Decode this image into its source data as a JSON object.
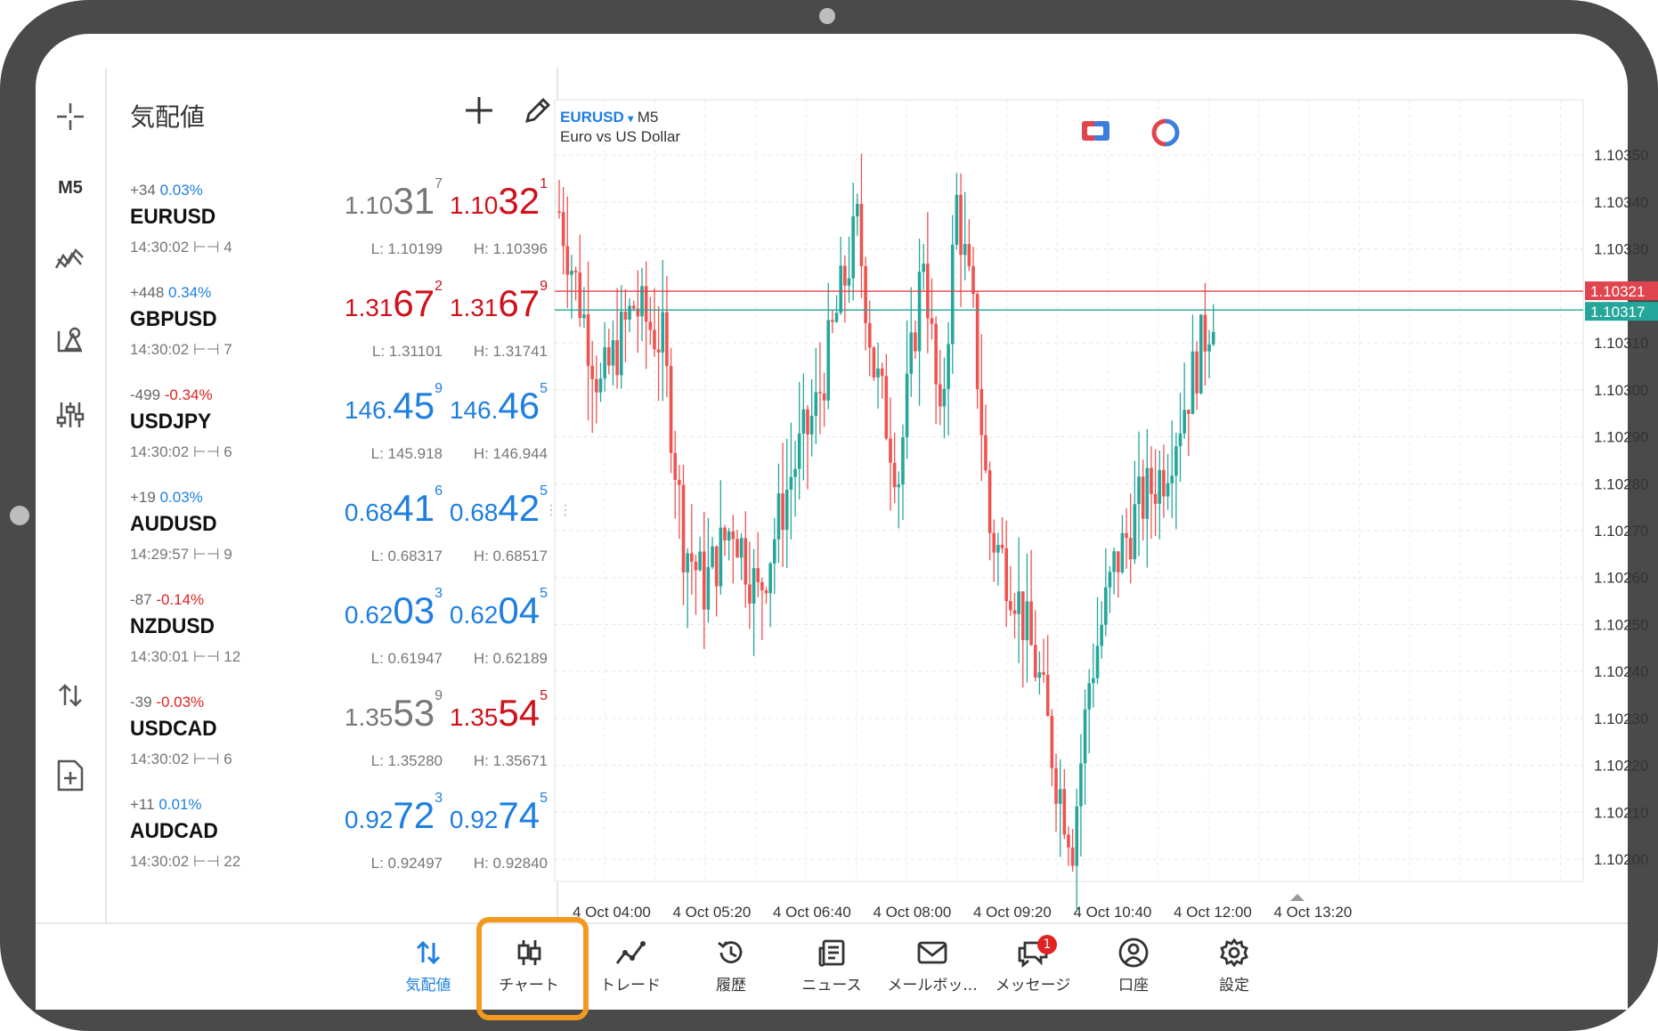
{
  "toolbar": {
    "timeframe": "M5"
  },
  "watchlist": {
    "title": "気配値",
    "symbols": [
      {
        "points": "+34",
        "pct": "0.03%",
        "dir": "up",
        "name": "EURUSD",
        "time": "14:30:02",
        "spread": "4",
        "bid": {
          "small": "1.10",
          "big": "31",
          "sup": "7",
          "color": "grey"
        },
        "ask": {
          "small": "1.10",
          "big": "32",
          "sup": "1",
          "color": "red"
        },
        "low": "L: 1.10199",
        "high": "H: 1.10396"
      },
      {
        "points": "+448",
        "pct": "0.34%",
        "dir": "up",
        "name": "GBPUSD",
        "time": "14:30:02",
        "spread": "7",
        "bid": {
          "small": "1.31",
          "big": "67",
          "sup": "2",
          "color": "red"
        },
        "ask": {
          "small": "1.31",
          "big": "67",
          "sup": "9",
          "color": "red"
        },
        "low": "L: 1.31101",
        "high": "H: 1.31741"
      },
      {
        "points": "-499",
        "pct": "-0.34%",
        "dir": "dn",
        "name": "USDJPY",
        "time": "14:30:02",
        "spread": "6",
        "bid": {
          "small": "146.",
          "big": "45",
          "sup": "9",
          "color": "blue"
        },
        "ask": {
          "small": "146.",
          "big": "46",
          "sup": "5",
          "color": "blue"
        },
        "low": "L: 145.918",
        "high": "H: 146.944"
      },
      {
        "points": "+19",
        "pct": "0.03%",
        "dir": "up",
        "name": "AUDUSD",
        "time": "14:29:57",
        "spread": "9",
        "bid": {
          "small": "0.68",
          "big": "41",
          "sup": "6",
          "color": "blue"
        },
        "ask": {
          "small": "0.68",
          "big": "42",
          "sup": "5",
          "color": "blue"
        },
        "low": "L: 0.68317",
        "high": "H: 0.68517"
      },
      {
        "points": "-87",
        "pct": "-0.14%",
        "dir": "dn",
        "name": "NZDUSD",
        "time": "14:30:01",
        "spread": "12",
        "bid": {
          "small": "0.62",
          "big": "03",
          "sup": "3",
          "color": "blue"
        },
        "ask": {
          "small": "0.62",
          "big": "04",
          "sup": "5",
          "color": "blue"
        },
        "low": "L: 0.61947",
        "high": "H: 0.62189"
      },
      {
        "points": "-39",
        "pct": "-0.03%",
        "dir": "dn",
        "name": "USDCAD",
        "time": "14:30:02",
        "spread": "6",
        "bid": {
          "small": "1.35",
          "big": "53",
          "sup": "9",
          "color": "grey"
        },
        "ask": {
          "small": "1.35",
          "big": "54",
          "sup": "5",
          "color": "red"
        },
        "low": "L: 1.35280",
        "high": "H: 1.35671"
      },
      {
        "points": "+11",
        "pct": "0.01%",
        "dir": "up",
        "name": "AUDCAD",
        "time": "14:30:02",
        "spread": "22",
        "bid": {
          "small": "0.92",
          "big": "72",
          "sup": "3",
          "color": "blue"
        },
        "ask": {
          "small": "0.92",
          "big": "74",
          "sup": "5",
          "color": "blue"
        },
        "low": "L: 0.92497",
        "high": "H: 0.92840"
      }
    ]
  },
  "chart": {
    "symbol": "EURUSD",
    "dropdown": "▾",
    "timeframe": "M5",
    "description": "Euro vs US Dollar",
    "chart_data": {
      "type": "candlestick",
      "ylim": [
        1.10193,
        1.10358
      ],
      "y_ticks": [
        "1.10350",
        "1.10340",
        "1.10330",
        "1.10310",
        "1.10300",
        "1.10290",
        "1.10280",
        "1.10270",
        "1.10260",
        "1.10250",
        "1.10240",
        "1.10230",
        "1.10220",
        "1.10210",
        "1.10200"
      ],
      "x_ticks": [
        "4 Oct 04:00",
        "4 Oct 05:20",
        "4 Oct 06:40",
        "4 Oct 08:00",
        "4 Oct 09:20",
        "4 Oct 10:40",
        "4 Oct 12:00",
        "4 Oct 13:20"
      ],
      "ask_line": {
        "value": "1.10321",
        "color": "#e0454f"
      },
      "bid_line": {
        "value": "1.10317",
        "color": "#26a69a"
      },
      "up_color": "#26a69a",
      "down_color": "#ef5350"
    }
  },
  "nav": {
    "items": [
      {
        "key": "quotes",
        "label": "気配値",
        "active": true
      },
      {
        "key": "chart",
        "label": "チャート",
        "active": false
      },
      {
        "key": "trade",
        "label": "トレード",
        "active": false
      },
      {
        "key": "history",
        "label": "履歴",
        "active": false
      },
      {
        "key": "news",
        "label": "ニュース",
        "active": false
      },
      {
        "key": "mailbox",
        "label": "メールボッ...",
        "active": false
      },
      {
        "key": "messages",
        "label": "メッセージ",
        "active": false,
        "badge": "1"
      },
      {
        "key": "account",
        "label": "口座",
        "active": false
      },
      {
        "key": "settings",
        "label": "設定",
        "active": false
      }
    ]
  }
}
